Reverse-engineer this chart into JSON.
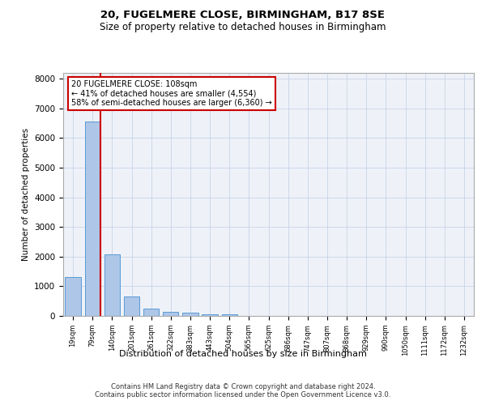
{
  "title1": "20, FUGELMERE CLOSE, BIRMINGHAM, B17 8SE",
  "title2": "Size of property relative to detached houses in Birmingham",
  "xlabel": "Distribution of detached houses by size in Birmingham",
  "ylabel": "Number of detached properties",
  "annotation_line1": "20 FUGELMERE CLOSE: 108sqm",
  "annotation_line2": "← 41% of detached houses are smaller (4,554)",
  "annotation_line3": "58% of semi-detached houses are larger (6,360) →",
  "footer1": "Contains HM Land Registry data © Crown copyright and database right 2024.",
  "footer2": "Contains public sector information licensed under the Open Government Licence v3.0.",
  "bar_color": "#aec6e8",
  "bar_edge_color": "#5b9bd5",
  "red_line_color": "#cc0000",
  "annotation_box_edge": "#cc0000",
  "grid_color": "#c8d4e8",
  "bg_color": "#eef2f8",
  "categories": [
    "19sqm",
    "79sqm",
    "140sqm",
    "201sqm",
    "261sqm",
    "322sqm",
    "383sqm",
    "443sqm",
    "504sqm",
    "565sqm",
    "625sqm",
    "686sqm",
    "747sqm",
    "807sqm",
    "868sqm",
    "929sqm",
    "990sqm",
    "1050sqm",
    "1111sqm",
    "1172sqm",
    "1232sqm"
  ],
  "values": [
    1300,
    6550,
    2070,
    650,
    250,
    130,
    100,
    65,
    65,
    0,
    0,
    0,
    0,
    0,
    0,
    0,
    0,
    0,
    0,
    0,
    0
  ],
  "ylim": [
    0,
    8200
  ],
  "yticks": [
    0,
    1000,
    2000,
    3000,
    4000,
    5000,
    6000,
    7000,
    8000
  ],
  "red_line_x": 1.42
}
